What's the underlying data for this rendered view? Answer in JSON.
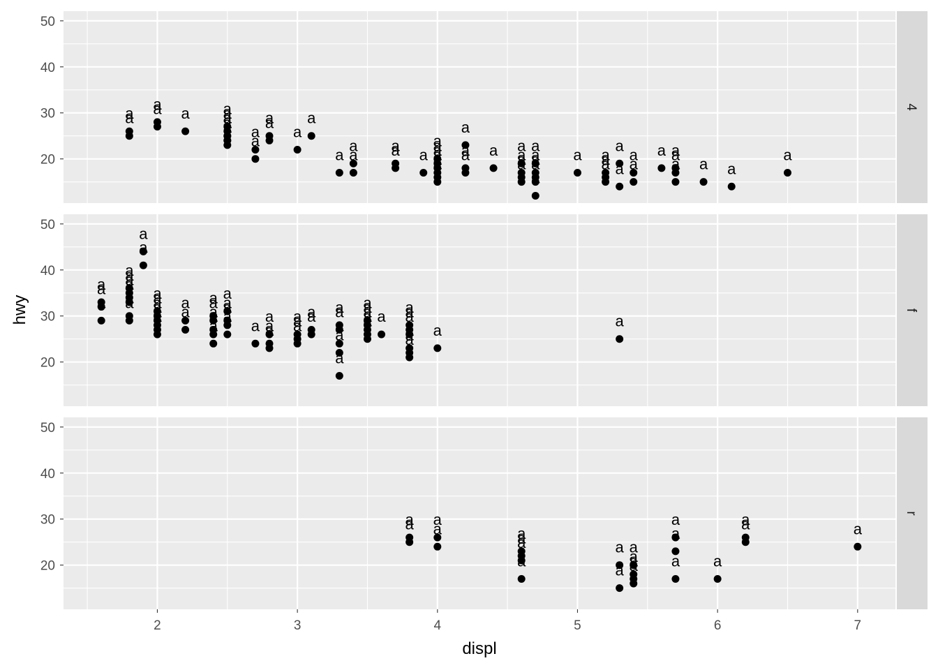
{
  "chart_data": {
    "type": "scatter",
    "title": "",
    "xlabel": "displ",
    "ylabel": "hwy",
    "xlim": [
      1.33,
      7.27
    ],
    "ylim": [
      10.4,
      52.1
    ],
    "x_ticks": [
      2,
      3,
      4,
      5,
      6,
      7
    ],
    "y_ticks": [
      20,
      30,
      40,
      50
    ],
    "grid": true,
    "facet_by": "drv",
    "point_label_text": "a",
    "point_color": "#000000",
    "panel_background": "#ebebeb",
    "strip_background": "#d9d9d9",
    "grid_color": "#ffffff",
    "panels": [
      {
        "strip": "4",
        "points": [
          [
            1.8,
            26
          ],
          [
            1.8,
            25
          ],
          [
            2.0,
            28
          ],
          [
            2.0,
            27
          ],
          [
            2.2,
            26
          ],
          [
            2.5,
            25
          ],
          [
            2.5,
            24
          ],
          [
            2.5,
            26
          ],
          [
            2.5,
            23
          ],
          [
            2.5,
            27
          ],
          [
            2.5,
            25
          ],
          [
            2.5,
            24
          ],
          [
            2.7,
            22
          ],
          [
            2.7,
            20
          ],
          [
            2.8,
            25
          ],
          [
            2.8,
            24
          ],
          [
            3.0,
            22
          ],
          [
            3.1,
            25
          ],
          [
            3.3,
            17
          ],
          [
            3.4,
            19
          ],
          [
            3.4,
            17
          ],
          [
            3.7,
            19
          ],
          [
            3.7,
            18
          ],
          [
            3.9,
            17
          ],
          [
            4.0,
            20
          ],
          [
            4.0,
            19
          ],
          [
            4.0,
            18
          ],
          [
            4.0,
            17
          ],
          [
            4.0,
            16
          ],
          [
            4.0,
            15
          ],
          [
            4.2,
            23
          ],
          [
            4.2,
            18
          ],
          [
            4.2,
            17
          ],
          [
            4.4,
            18
          ],
          [
            4.6,
            19
          ],
          [
            4.6,
            17
          ],
          [
            4.6,
            16
          ],
          [
            4.6,
            15
          ],
          [
            4.7,
            19
          ],
          [
            4.7,
            17
          ],
          [
            4.7,
            16
          ],
          [
            4.7,
            15
          ],
          [
            4.7,
            12
          ],
          [
            5.0,
            17
          ],
          [
            5.2,
            17
          ],
          [
            5.2,
            16
          ],
          [
            5.2,
            15
          ],
          [
            5.3,
            19
          ],
          [
            5.3,
            14
          ],
          [
            5.4,
            17
          ],
          [
            5.4,
            15
          ],
          [
            5.6,
            18
          ],
          [
            5.7,
            18
          ],
          [
            5.7,
            17
          ],
          [
            5.7,
            15
          ],
          [
            5.9,
            15
          ],
          [
            6.1,
            14
          ],
          [
            6.5,
            17
          ]
        ]
      },
      {
        "strip": "f",
        "points": [
          [
            1.6,
            33
          ],
          [
            1.6,
            32
          ],
          [
            1.6,
            29
          ],
          [
            1.8,
            36
          ],
          [
            1.8,
            35
          ],
          [
            1.8,
            34
          ],
          [
            1.8,
            33
          ],
          [
            1.8,
            30
          ],
          [
            1.8,
            29
          ],
          [
            1.9,
            44
          ],
          [
            1.9,
            41
          ],
          [
            2.0,
            31
          ],
          [
            2.0,
            30
          ],
          [
            2.0,
            29
          ],
          [
            2.0,
            28
          ],
          [
            2.0,
            27
          ],
          [
            2.0,
            26
          ],
          [
            2.2,
            29
          ],
          [
            2.2,
            27
          ],
          [
            2.4,
            30
          ],
          [
            2.4,
            29
          ],
          [
            2.4,
            27
          ],
          [
            2.4,
            26
          ],
          [
            2.4,
            24
          ],
          [
            2.5,
            31
          ],
          [
            2.5,
            29
          ],
          [
            2.5,
            28
          ],
          [
            2.5,
            26
          ],
          [
            2.7,
            24
          ],
          [
            2.8,
            26
          ],
          [
            2.8,
            24
          ],
          [
            2.8,
            23
          ],
          [
            3.0,
            26
          ],
          [
            3.0,
            25
          ],
          [
            3.0,
            24
          ],
          [
            3.1,
            27
          ],
          [
            3.1,
            26
          ],
          [
            3.3,
            28
          ],
          [
            3.3,
            27
          ],
          [
            3.3,
            24
          ],
          [
            3.3,
            22
          ],
          [
            3.3,
            17
          ],
          [
            3.5,
            29
          ],
          [
            3.5,
            28
          ],
          [
            3.5,
            27
          ],
          [
            3.5,
            26
          ],
          [
            3.5,
            25
          ],
          [
            3.6,
            26
          ],
          [
            3.8,
            28
          ],
          [
            3.8,
            27
          ],
          [
            3.8,
            26
          ],
          [
            3.8,
            23
          ],
          [
            3.8,
            22
          ],
          [
            3.8,
            21
          ],
          [
            4.0,
            23
          ],
          [
            5.3,
            25
          ]
        ]
      },
      {
        "strip": "r",
        "points": [
          [
            3.8,
            26
          ],
          [
            3.8,
            25
          ],
          [
            4.0,
            26
          ],
          [
            4.0,
            24
          ],
          [
            4.6,
            23
          ],
          [
            4.6,
            22
          ],
          [
            4.6,
            21
          ],
          [
            4.6,
            17
          ],
          [
            5.3,
            20
          ],
          [
            5.3,
            15
          ],
          [
            5.4,
            20
          ],
          [
            5.4,
            18
          ],
          [
            5.4,
            17
          ],
          [
            5.4,
            16
          ],
          [
            5.7,
            26
          ],
          [
            5.7,
            23
          ],
          [
            5.7,
            17
          ],
          [
            6.0,
            17
          ],
          [
            6.2,
            26
          ],
          [
            6.2,
            25
          ],
          [
            7.0,
            24
          ]
        ]
      }
    ]
  }
}
